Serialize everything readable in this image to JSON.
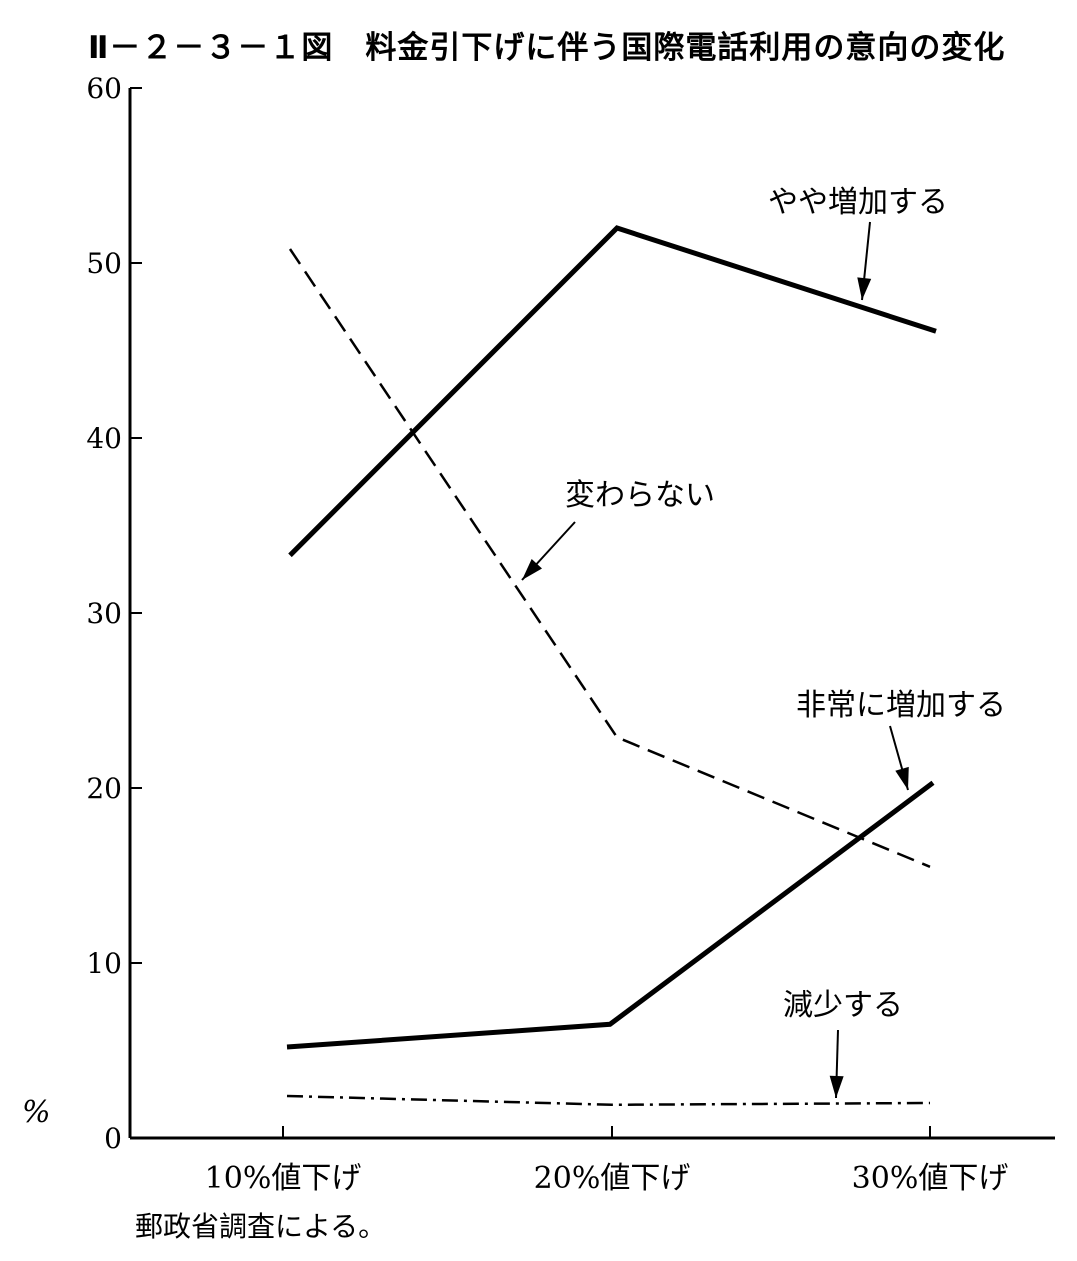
{
  "title": "Ⅱ－２－３－１図　料金引下げに伴う国際電話利用の意向の変化",
  "source_note": "郵政省調査による。",
  "chart_data": {
    "type": "line",
    "title": "Ⅱ－２－３－１図　料金引下げに伴う国際電話利用の意向の変化",
    "ylabel": "%",
    "xlabel": "",
    "categories": [
      "10%値下げ",
      "20%値下げ",
      "30%値下げ"
    ],
    "ylim": [
      0,
      60
    ],
    "yticks": [
      0,
      10,
      20,
      30,
      40,
      50,
      60
    ],
    "grid": false,
    "legend": "inline labels with arrows",
    "series": [
      {
        "name": "やや増加する",
        "values": [
          33.3,
          52.0,
          46.1
        ],
        "style": "solid-thick"
      },
      {
        "name": "変わらない",
        "values": [
          50.8,
          22.9,
          15.5
        ],
        "style": "dashed"
      },
      {
        "name": "非常に増加する",
        "values": [
          5.2,
          6.5,
          20.3
        ],
        "style": "solid-thick"
      },
      {
        "name": "減少する",
        "values": [
          2.4,
          1.9,
          2.0
        ],
        "style": "dash-dot"
      }
    ]
  }
}
